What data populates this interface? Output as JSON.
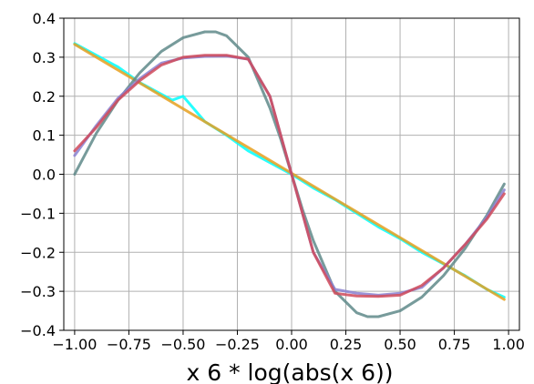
{
  "chart_data": {
    "type": "line",
    "xlabel": "x 6 * log(abs(x 6))",
    "ylabel": "",
    "xlim": [
      -1.05,
      1.05
    ],
    "ylim": [
      -0.4,
      0.4
    ],
    "xticks": [
      "−1.00",
      "−0.75",
      "−0.50",
      "−0.25",
      "0.00",
      "0.25",
      "0.50",
      "0.75",
      "1.00"
    ],
    "yticks": [
      "0.4",
      "0.3",
      "0.2",
      "0.1",
      "0.0",
      "−0.1",
      "−0.2",
      "−0.3",
      "−0.4"
    ],
    "grid": true,
    "series": [
      {
        "color": "#00ffff",
        "x": [
          -1.0,
          -0.9,
          -0.8,
          -0.7,
          -0.6,
          -0.55,
          -0.5,
          -0.4,
          -0.3,
          -0.2,
          -0.1,
          0.0,
          0.1,
          0.2,
          0.3,
          0.4,
          0.5,
          0.6,
          0.7,
          0.8,
          0.9,
          0.98
        ],
        "values": [
          0.335,
          0.305,
          0.275,
          0.235,
          0.205,
          0.19,
          0.2,
          0.135,
          0.1,
          0.06,
          0.03,
          0.0,
          -0.035,
          -0.065,
          -0.1,
          -0.135,
          -0.165,
          -0.2,
          -0.23,
          -0.26,
          -0.295,
          -0.315
        ]
      },
      {
        "color": "#e6a020",
        "x": [
          -1.0,
          0.98
        ],
        "values": [
          0.333,
          -0.321
        ]
      },
      {
        "color": "#5f8a8a",
        "x": [
          -1.0,
          -0.9,
          -0.8,
          -0.7,
          -0.6,
          -0.5,
          -0.4,
          -0.35,
          -0.3,
          -0.2,
          -0.1,
          -0.05,
          0.0,
          0.05,
          0.1,
          0.2,
          0.3,
          0.35,
          0.4,
          0.5,
          0.6,
          0.7,
          0.8,
          0.9,
          0.98
        ],
        "values": [
          0.0,
          0.105,
          0.19,
          0.26,
          0.315,
          0.35,
          0.365,
          0.365,
          0.355,
          0.3,
          0.17,
          0.09,
          0.0,
          -0.09,
          -0.17,
          -0.3,
          -0.355,
          -0.365,
          -0.365,
          -0.35,
          -0.315,
          -0.26,
          -0.19,
          -0.105,
          -0.025
        ]
      },
      {
        "color": "#8a80d0",
        "x": [
          -1.0,
          -0.9,
          -0.8,
          -0.7,
          -0.6,
          -0.5,
          -0.4,
          -0.3,
          -0.2,
          -0.1,
          -0.05,
          0.0,
          0.05,
          0.1,
          0.2,
          0.3,
          0.4,
          0.5,
          0.6,
          0.7,
          0.8,
          0.9,
          0.98
        ],
        "values": [
          0.048,
          0.125,
          0.195,
          0.245,
          0.285,
          0.298,
          0.302,
          0.303,
          0.295,
          0.2,
          0.1,
          0.0,
          -0.1,
          -0.2,
          -0.295,
          -0.305,
          -0.31,
          -0.305,
          -0.29,
          -0.24,
          -0.18,
          -0.11,
          -0.04
        ]
      },
      {
        "color": "#d04a5a",
        "x": [
          -1.0,
          -0.9,
          -0.8,
          -0.7,
          -0.6,
          -0.5,
          -0.4,
          -0.3,
          -0.2,
          -0.1,
          -0.05,
          0.0,
          0.05,
          0.1,
          0.2,
          0.3,
          0.4,
          0.5,
          0.6,
          0.7,
          0.8,
          0.9,
          0.98
        ],
        "values": [
          0.06,
          0.12,
          0.19,
          0.24,
          0.28,
          0.3,
          0.305,
          0.305,
          0.295,
          0.2,
          0.1,
          0.0,
          -0.1,
          -0.2,
          -0.305,
          -0.312,
          -0.313,
          -0.31,
          -0.285,
          -0.24,
          -0.18,
          -0.115,
          -0.05
        ]
      }
    ]
  }
}
